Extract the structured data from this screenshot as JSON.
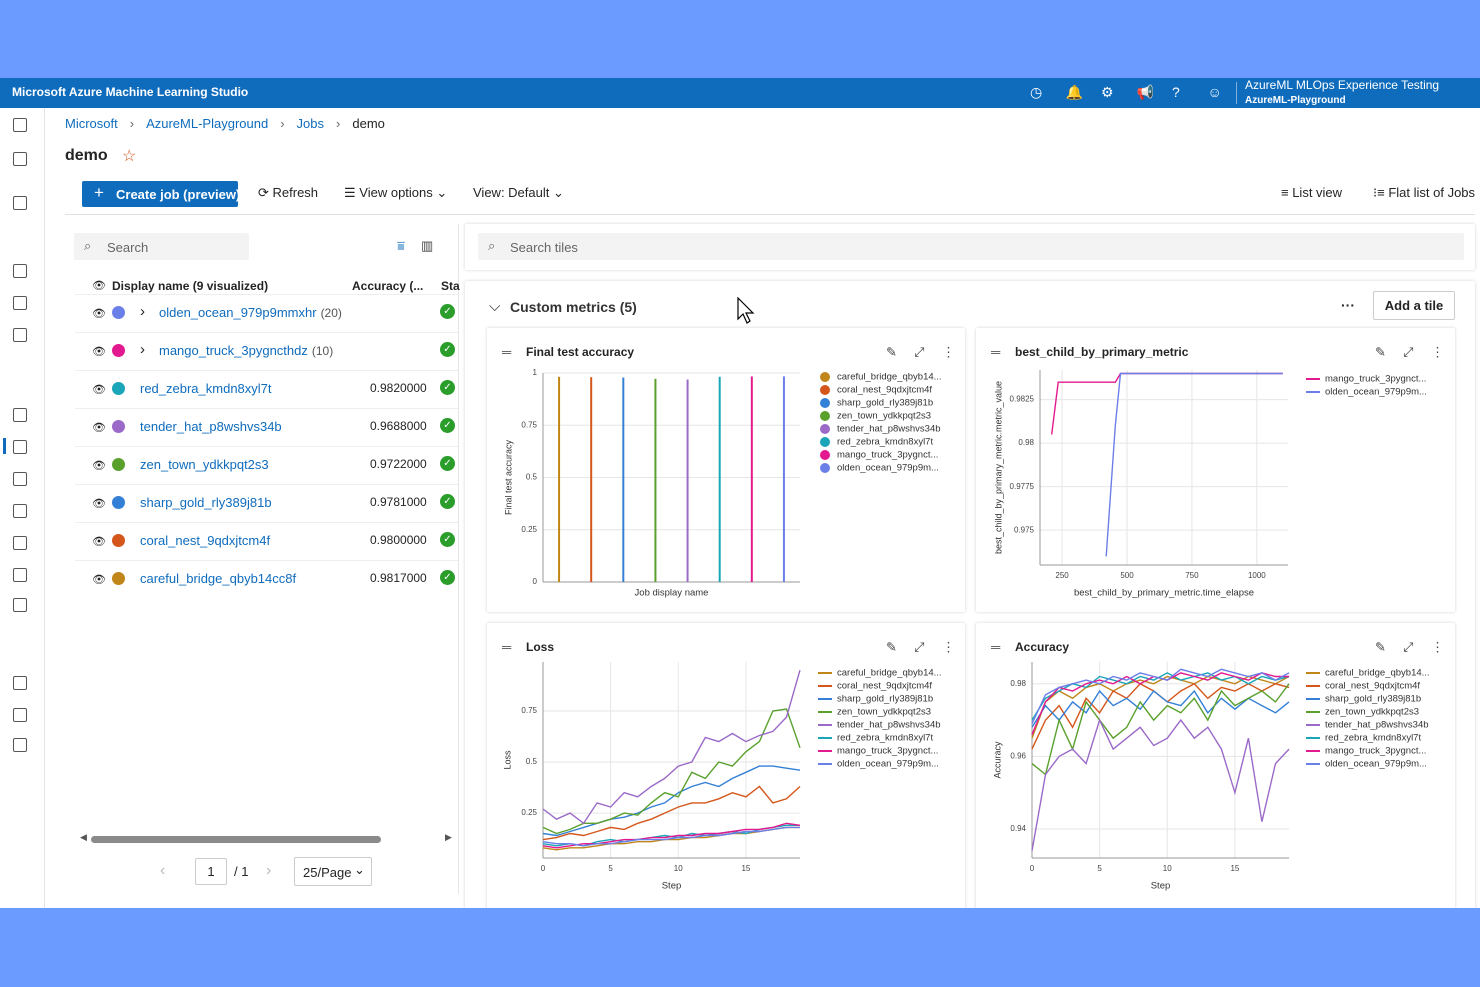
{
  "header": {
    "app_title": "Microsoft Azure Machine Learning Studio",
    "workspace": "AzureML MLOps Experience Testing",
    "subscription": "AzureML-Playground"
  },
  "breadcrumb": [
    "Microsoft",
    "AzureML-Playground",
    "Jobs",
    "demo"
  ],
  "page_title": "demo",
  "toolbar": {
    "create": "Create job (preview)",
    "refresh": "Refresh",
    "view_options": "View options",
    "view": "View: Default",
    "list_view": "List view",
    "flat_list": "Flat list of Jobs"
  },
  "jobs": {
    "search": "Search",
    "columns": [
      "Display name (9 visualized)",
      "Accuracy (...",
      "Sta"
    ],
    "rows": [
      {
        "name": "olden_ocean_979p9mmxhr",
        "count": "(20)",
        "color": "#6b7fe8"
      },
      {
        "name": "mango_truck_3pygncthdz",
        "count": "(10)",
        "color": "#e3198f"
      },
      {
        "name": "red_zebra_kmdn8xyl7t",
        "accuracy": "0.9820000",
        "color": "#1aa5b8"
      },
      {
        "name": "tender_hat_p8wshvs34b",
        "accuracy": "0.9688000",
        "color": "#9b6ac9"
      },
      {
        "name": "zen_town_ydkkpqt2s3",
        "accuracy": "0.9722000",
        "color": "#5aa02c"
      },
      {
        "name": "sharp_gold_rly389j81b",
        "accuracy": "0.9781000",
        "color": "#3480d6"
      },
      {
        "name": "coral_nest_9qdxjtcm4f",
        "accuracy": "0.9800000",
        "color": "#d4561a"
      },
      {
        "name": "careful_bridge_qbyb14cc8f",
        "accuracy": "0.9817000",
        "color": "#c0861a"
      }
    ],
    "pagination": {
      "page": "1",
      "total": "/ 1",
      "page_size": "25/Page"
    }
  },
  "tiles": {
    "search": "Search tiles",
    "section": "Custom metrics (5)",
    "more": "···",
    "add": "Add a tile"
  },
  "chart_data": [
    {
      "type": "bar",
      "title": "Final test accuracy",
      "xlabel": "Job display name",
      "ylabel": "Final test accuracy",
      "ylim": [
        0,
        1
      ],
      "yticks": [
        0,
        0.25,
        0.5,
        0.75,
        1
      ],
      "grid": true,
      "legend": "right",
      "series": [
        {
          "name": "careful_bridge_qbyb14...",
          "color": "#c0861a",
          "values": [
            0.9817
          ]
        },
        {
          "name": "coral_nest_9qdxjtcm4f",
          "color": "#d4561a",
          "values": [
            0.98
          ]
        },
        {
          "name": "sharp_gold_rly389j81b",
          "color": "#3480d6",
          "values": [
            0.9781
          ]
        },
        {
          "name": "zen_town_ydkkpqt2s3",
          "color": "#5aa02c",
          "values": [
            0.9722
          ]
        },
        {
          "name": "tender_hat_p8wshvs34b",
          "color": "#9b6ac9",
          "values": [
            0.9688
          ]
        },
        {
          "name": "red_zebra_kmdn8xyl7t",
          "color": "#1aa5b8",
          "values": [
            0.982
          ]
        },
        {
          "name": "mango_truck_3pygnct...",
          "color": "#e3198f",
          "values": [
            0.9835
          ]
        },
        {
          "name": "olden_ocean_979p9m...",
          "color": "#6b7fe8",
          "values": [
            0.984
          ]
        }
      ]
    },
    {
      "type": "line",
      "title": "best_child_by_primary_metric",
      "xlabel": "best_child_by_primary_metric.time_elapse",
      "ylabel": "best_child_by_primary_metric.metric_value",
      "xlim": [
        165,
        1120
      ],
      "xticks": [
        250,
        500,
        750,
        1000
      ],
      "ylim": [
        0.973,
        0.9842
      ],
      "yticks": [
        0.975,
        0.9775,
        0.98,
        0.9825
      ],
      "grid": true,
      "legend": "right",
      "series": [
        {
          "name": "mango_truck_3pygnct...",
          "color": "#e3198f",
          "x": [
            210,
            235,
            455,
            475,
            1100
          ],
          "values": [
            0.9805,
            0.9835,
            0.9835,
            0.984,
            0.984
          ]
        },
        {
          "name": "olden_ocean_979p9m...",
          "color": "#6b7fe8",
          "x": [
            420,
            455,
            475,
            1100
          ],
          "values": [
            0.9735,
            0.981,
            0.984,
            0.984
          ]
        }
      ]
    },
    {
      "type": "line",
      "title": "Loss",
      "xlabel": "Step",
      "ylabel": "Loss",
      "x": [
        0,
        1,
        2,
        3,
        4,
        5,
        6,
        7,
        8,
        9,
        10,
        11,
        12,
        13,
        14,
        15,
        16,
        17,
        18,
        19
      ],
      "xlim": [
        0,
        19
      ],
      "xticks": [
        0,
        5,
        10,
        15
      ],
      "ylim": [
        0.03,
        0.99
      ],
      "yticks": [
        0.25,
        0.5,
        0.75
      ],
      "grid": true,
      "legend": "right",
      "series": [
        {
          "name": "careful_bridge_qbyb14...",
          "color": "#c0861a",
          "values": [
            0.08,
            0.07,
            0.08,
            0.08,
            0.09,
            0.1,
            0.1,
            0.11,
            0.11,
            0.12,
            0.12,
            0.13,
            0.13,
            0.14,
            0.15,
            0.15,
            0.16,
            0.17,
            0.18,
            0.18
          ]
        },
        {
          "name": "coral_nest_9qdxjtcm4f",
          "color": "#d4561a",
          "values": [
            0.12,
            0.13,
            0.15,
            0.14,
            0.16,
            0.18,
            0.17,
            0.2,
            0.22,
            0.25,
            0.28,
            0.3,
            0.3,
            0.32,
            0.35,
            0.33,
            0.38,
            0.3,
            0.32,
            0.38
          ]
        },
        {
          "name": "sharp_gold_rly389j81b",
          "color": "#3480d6",
          "values": [
            0.15,
            0.14,
            0.16,
            0.18,
            0.2,
            0.22,
            0.23,
            0.25,
            0.28,
            0.3,
            0.35,
            0.38,
            0.4,
            0.38,
            0.42,
            0.45,
            0.48,
            0.48,
            0.47,
            0.46
          ]
        },
        {
          "name": "zen_town_ydkkpqt2s3",
          "color": "#5aa02c",
          "values": [
            0.18,
            0.15,
            0.17,
            0.2,
            0.2,
            0.22,
            0.25,
            0.24,
            0.3,
            0.35,
            0.33,
            0.45,
            0.42,
            0.5,
            0.48,
            0.55,
            0.6,
            0.75,
            0.76,
            0.57
          ]
        },
        {
          "name": "tender_hat_p8wshvs34b",
          "color": "#9b6ac9",
          "values": [
            0.27,
            0.22,
            0.25,
            0.2,
            0.3,
            0.28,
            0.35,
            0.33,
            0.38,
            0.42,
            0.48,
            0.5,
            0.62,
            0.6,
            0.64,
            0.6,
            0.63,
            0.65,
            0.72,
            0.95
          ]
        },
        {
          "name": "red_zebra_kmdn8xyl7t",
          "color": "#1aa5b8",
          "values": [
            0.1,
            0.09,
            0.1,
            0.09,
            0.11,
            0.12,
            0.11,
            0.12,
            0.13,
            0.14,
            0.13,
            0.15,
            0.14,
            0.15,
            0.16,
            0.15,
            0.17,
            0.18,
            0.19,
            0.19
          ]
        },
        {
          "name": "mango_truck_3pygnct...",
          "color": "#e3198f",
          "values": [
            0.09,
            0.08,
            0.09,
            0.1,
            0.1,
            0.11,
            0.12,
            0.12,
            0.13,
            0.13,
            0.14,
            0.14,
            0.15,
            0.15,
            0.16,
            0.17,
            0.17,
            0.18,
            0.2,
            0.19
          ]
        },
        {
          "name": "olden_ocean_979p9m...",
          "color": "#6b7fe8",
          "values": [
            0.11,
            0.1,
            0.1,
            0.09,
            0.1,
            0.1,
            0.11,
            0.12,
            0.12,
            0.12,
            0.13,
            0.13,
            0.14,
            0.14,
            0.15,
            0.16,
            0.16,
            0.17,
            0.18,
            0.18
          ]
        }
      ]
    },
    {
      "type": "line",
      "title": "Accuracy",
      "xlabel": "Step",
      "ylabel": "Accuracy",
      "x": [
        0,
        1,
        2,
        3,
        4,
        5,
        6,
        7,
        8,
        9,
        10,
        11,
        12,
        13,
        14,
        15,
        16,
        17,
        18,
        19
      ],
      "xlim": [
        0,
        19
      ],
      "xticks": [
        0,
        5,
        10,
        15
      ],
      "ylim": [
        0.932,
        0.986
      ],
      "yticks": [
        0.94,
        0.96,
        0.98
      ],
      "grid": true,
      "legend": "right",
      "series": [
        {
          "name": "careful_bridge_qbyb14...",
          "color": "#c0861a",
          "values": [
            0.965,
            0.975,
            0.978,
            0.976,
            0.979,
            0.98,
            0.978,
            0.98,
            0.981,
            0.98,
            0.982,
            0.981,
            0.98,
            0.982,
            0.981,
            0.98,
            0.982,
            0.981,
            0.98,
            0.982
          ]
        },
        {
          "name": "coral_nest_9qdxjtcm4f",
          "color": "#d4561a",
          "values": [
            0.962,
            0.97,
            0.974,
            0.968,
            0.976,
            0.972,
            0.978,
            0.976,
            0.98,
            0.978,
            0.975,
            0.978,
            0.98,
            0.976,
            0.979,
            0.978,
            0.98,
            0.978,
            0.98,
            0.979
          ]
        },
        {
          "name": "sharp_gold_rly389j81b",
          "color": "#3480d6",
          "values": [
            0.968,
            0.974,
            0.97,
            0.975,
            0.972,
            0.978,
            0.974,
            0.976,
            0.973,
            0.978,
            0.975,
            0.974,
            0.978,
            0.972,
            0.976,
            0.973,
            0.976,
            0.974,
            0.972,
            0.975
          ]
        },
        {
          "name": "zen_town_ydkkpqt2s3",
          "color": "#5aa02c",
          "values": [
            0.958,
            0.955,
            0.97,
            0.962,
            0.975,
            0.97,
            0.965,
            0.968,
            0.975,
            0.97,
            0.974,
            0.972,
            0.976,
            0.97,
            0.978,
            0.974,
            0.976,
            0.978,
            0.975,
            0.98
          ]
        },
        {
          "name": "tender_hat_p8wshvs34b",
          "color": "#9b6ac9",
          "values": [
            0.934,
            0.955,
            0.96,
            0.962,
            0.958,
            0.97,
            0.962,
            0.965,
            0.968,
            0.963,
            0.965,
            0.97,
            0.965,
            0.968,
            0.962,
            0.95,
            0.965,
            0.942,
            0.958,
            0.962
          ]
        },
        {
          "name": "red_zebra_kmdn8xyl7t",
          "color": "#1aa5b8",
          "values": [
            0.97,
            0.976,
            0.978,
            0.98,
            0.979,
            0.982,
            0.981,
            0.98,
            0.982,
            0.981,
            0.983,
            0.981,
            0.982,
            0.983,
            0.981,
            0.982,
            0.98,
            0.982,
            0.981,
            0.982
          ]
        },
        {
          "name": "mango_truck_3pygnct...",
          "color": "#e3198f",
          "values": [
            0.966,
            0.975,
            0.979,
            0.978,
            0.98,
            0.981,
            0.98,
            0.982,
            0.98,
            0.982,
            0.981,
            0.983,
            0.982,
            0.981,
            0.983,
            0.982,
            0.981,
            0.983,
            0.982,
            0.982
          ]
        },
        {
          "name": "olden_ocean_979p9m...",
          "color": "#6b7fe8",
          "values": [
            0.969,
            0.977,
            0.979,
            0.98,
            0.981,
            0.98,
            0.982,
            0.981,
            0.983,
            0.982,
            0.981,
            0.984,
            0.983,
            0.982,
            0.984,
            0.983,
            0.982,
            0.983,
            0.981,
            0.983
          ]
        }
      ]
    }
  ]
}
